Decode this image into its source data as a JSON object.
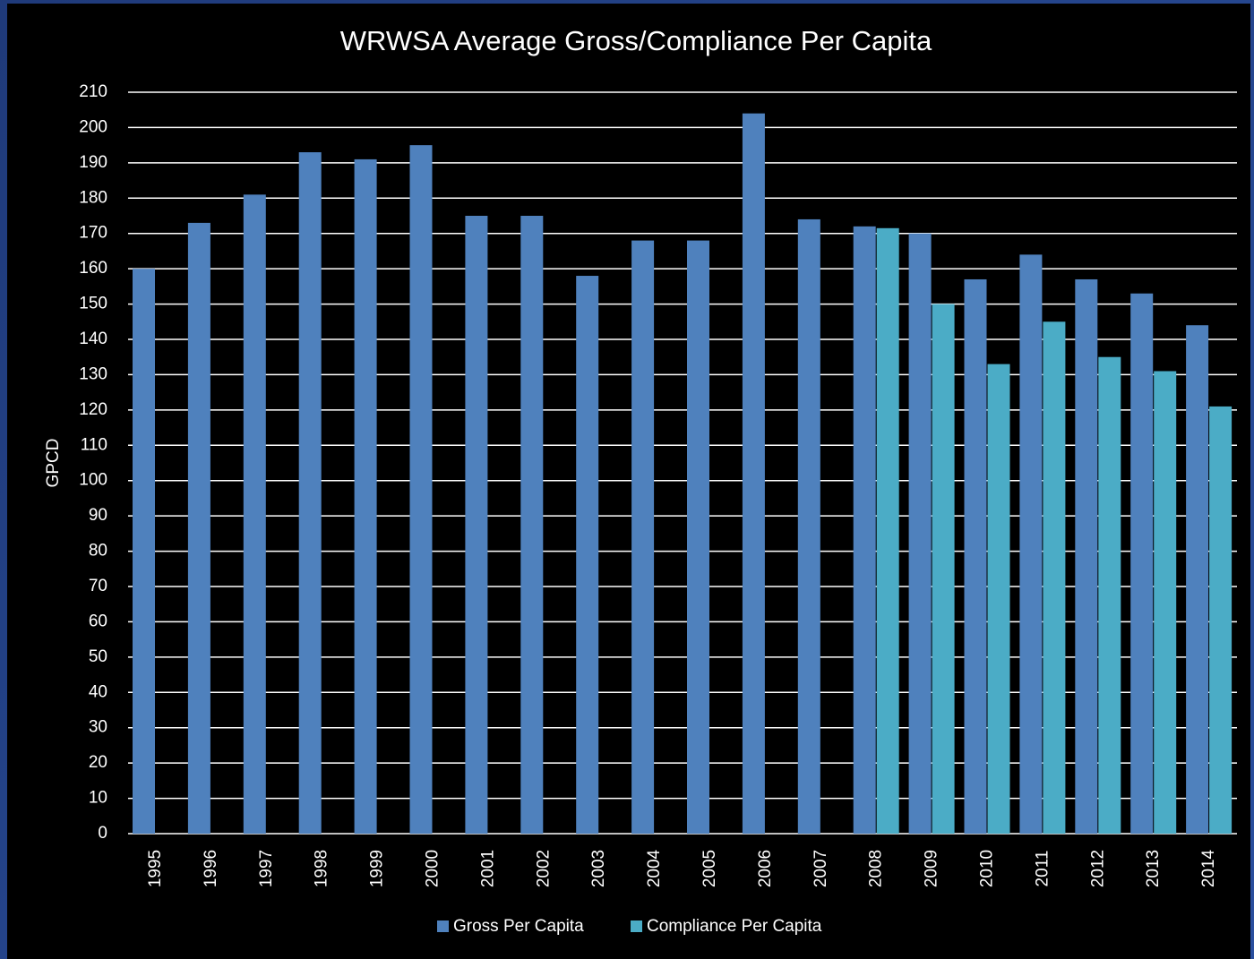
{
  "chart_data": {
    "type": "bar",
    "title": "WRWSA Average Gross/Compliance Per Capita",
    "y_label": "GPCD",
    "categories": [
      "1995",
      "1996",
      "1997",
      "1998",
      "1999",
      "2000",
      "2001",
      "2002",
      "2003",
      "2004",
      "2005",
      "2006",
      "2007",
      "2008",
      "2009",
      "2010",
      "2011",
      "2012",
      "2013",
      "2014"
    ],
    "series": [
      {
        "name": "Gross Per Capita",
        "color": "#4f81bd",
        "values": [
          160,
          173,
          181,
          193,
          191,
          195,
          175,
          175,
          158,
          168,
          168,
          204,
          174,
          172,
          170,
          157,
          164,
          157,
          153,
          144
        ]
      },
      {
        "name": "Compliance Per Capita",
        "color": "#4bacc6",
        "values": [
          null,
          null,
          null,
          null,
          null,
          null,
          null,
          null,
          null,
          null,
          null,
          null,
          null,
          171.5,
          150,
          133,
          145,
          135,
          131,
          121
        ]
      }
    ],
    "ylim": [
      0,
      210
    ],
    "yticks": [
      0,
      10,
      20,
      30,
      40,
      50,
      60,
      70,
      80,
      90,
      100,
      110,
      120,
      130,
      140,
      150,
      160,
      170,
      180,
      190,
      200,
      210
    ],
    "grid": true,
    "legend": "bottom"
  }
}
